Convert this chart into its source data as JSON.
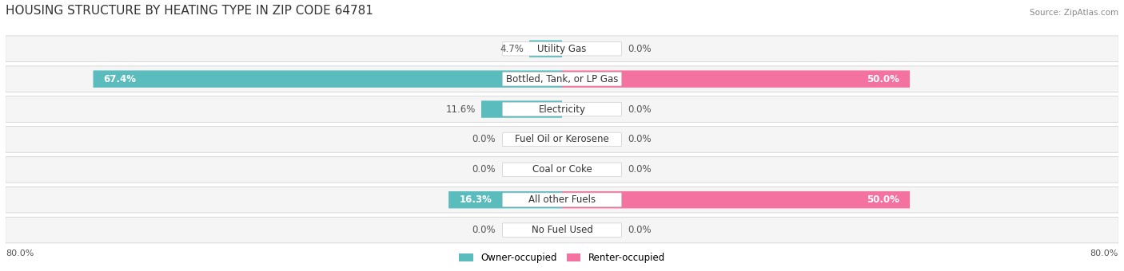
{
  "title": "HOUSING STRUCTURE BY HEATING TYPE IN ZIP CODE 64781",
  "source": "Source: ZipAtlas.com",
  "categories": [
    "Utility Gas",
    "Bottled, Tank, or LP Gas",
    "Electricity",
    "Fuel Oil or Kerosene",
    "Coal or Coke",
    "All other Fuels",
    "No Fuel Used"
  ],
  "owner_values": [
    4.7,
    67.4,
    11.6,
    0.0,
    0.0,
    16.3,
    0.0
  ],
  "renter_values": [
    0.0,
    50.0,
    0.0,
    0.0,
    0.0,
    50.0,
    0.0
  ],
  "owner_color": "#5bbcbd",
  "renter_color": "#f472a0",
  "bar_bg_color": "#f0f0f0",
  "row_bg_color": "#f5f5f5",
  "axis_left_label": "80.0%",
  "axis_right_label": "80.0%",
  "max_value": 80.0,
  "legend_owner": "Owner-occupied",
  "legend_renter": "Renter-occupied",
  "title_fontsize": 11,
  "label_fontsize": 8.5,
  "category_fontsize": 8.5
}
